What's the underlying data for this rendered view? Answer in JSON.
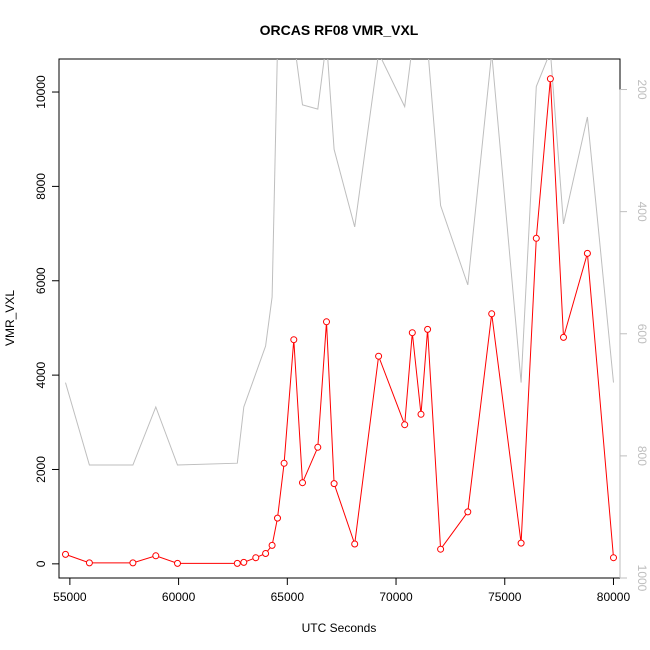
{
  "chart_data": {
    "type": "line",
    "title": "ORCAS RF08 VMR_VXL",
    "xlabel": "UTC Seconds",
    "ylabel": "VMR_VXL",
    "xlim": [
      54500,
      80300
    ],
    "ylim": [
      -300,
      10700
    ],
    "y2lim": [
      1000,
      150
    ],
    "x_ticks": [
      55000,
      60000,
      65000,
      70000,
      75000,
      80000
    ],
    "y_ticks": [
      0,
      2000,
      4000,
      6000,
      8000,
      10000
    ],
    "y2_ticks": [
      200,
      400,
      600,
      800,
      1000
    ],
    "grid": false,
    "legend": "none",
    "series": [
      {
        "axis": "left",
        "color": "#ff0000",
        "marker": "open-circle",
        "x": [
          54800,
          55900,
          57900,
          58950,
          59950,
          62700,
          63000,
          63550,
          64000,
          64300,
          64550,
          64850,
          65300,
          65700,
          66400,
          66800,
          67150,
          68100,
          69200,
          70400,
          70750,
          71150,
          71450,
          72050,
          73300,
          74400,
          75750,
          76450,
          77100,
          77700,
          78800,
          80000
        ],
        "y": [
          200,
          20,
          20,
          170,
          10,
          10,
          30,
          130,
          220,
          390,
          970,
          2130,
          4750,
          1720,
          2470,
          5130,
          1700,
          420,
          4400,
          2950,
          4900,
          3170,
          4970,
          310,
          1100,
          5300,
          440,
          6900,
          10280,
          4800,
          6580,
          130
        ]
      },
      {
        "axis": "right",
        "color": "#bebebe",
        "marker": "none",
        "x": [
          54800,
          55900,
          57900,
          58950,
          59950,
          62700,
          63000,
          63550,
          64000,
          64300,
          64550,
          64850,
          65300,
          65700,
          66400,
          66800,
          67150,
          68100,
          69200,
          70400,
          70750,
          71150,
          71450,
          72050,
          73300,
          74400,
          75750,
          76450,
          77100,
          77700,
          78800,
          80000
        ],
        "y": [
          680,
          815,
          815,
          720,
          815,
          812,
          720,
          665,
          620,
          540,
          130,
          120,
          118,
          225,
          232,
          120,
          298,
          425,
          140,
          228,
          130,
          140,
          130,
          390,
          520,
          140,
          680,
          195,
          138,
          420,
          245,
          680
        ]
      }
    ]
  }
}
